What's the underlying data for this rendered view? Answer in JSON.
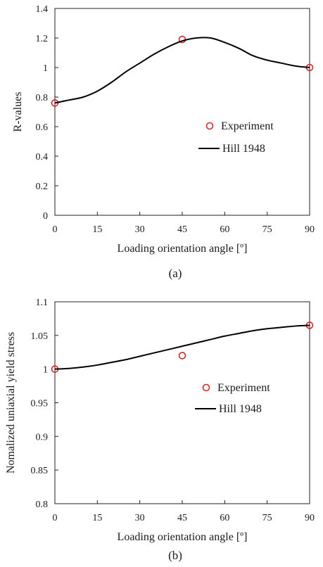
{
  "chart_data": [
    {
      "type": "line",
      "panel_label": "(a)",
      "xlabel": "Loading orientation angle [º]",
      "ylabel": "R-values",
      "xlim": [
        0,
        90
      ],
      "ylim": [
        0,
        1.4
      ],
      "xticks": [
        "0",
        "15",
        "30",
        "45",
        "60",
        "75",
        "90"
      ],
      "yticks": [
        "0",
        "0.2",
        "0.4",
        "0.6",
        "0.8",
        "1",
        "1.2",
        "1.4"
      ],
      "grid": false,
      "legend_position": "center-right",
      "series": [
        {
          "name": "Experiment",
          "kind": "scatter",
          "marker": "open-circle",
          "color": "#d62728",
          "x": [
            0,
            45,
            90
          ],
          "y": [
            0.76,
            1.19,
            1.0
          ]
        },
        {
          "name": "Hill 1948",
          "kind": "line",
          "color": "#000000",
          "x": [
            0,
            5,
            10,
            15,
            20,
            25,
            30,
            35,
            40,
            45,
            50,
            55,
            60,
            65,
            70,
            75,
            80,
            85,
            90
          ],
          "y": [
            0.76,
            0.78,
            0.8,
            0.84,
            0.9,
            0.97,
            1.03,
            1.09,
            1.14,
            1.18,
            1.2,
            1.2,
            1.17,
            1.13,
            1.08,
            1.05,
            1.03,
            1.01,
            1.0
          ]
        }
      ]
    },
    {
      "type": "line",
      "panel_label": "(b)",
      "xlabel": "Loading orientation angle [º]",
      "ylabel": "Nomalized uniaxial yield stress",
      "xlim": [
        0,
        90
      ],
      "ylim": [
        0.8,
        1.1
      ],
      "xticks": [
        "0",
        "15",
        "30",
        "45",
        "60",
        "75",
        "90"
      ],
      "yticks": [
        "0.8",
        "0.85",
        "0.9",
        "0.95",
        "1",
        "1.05",
        "1.1"
      ],
      "grid": false,
      "legend_position": "center-right",
      "series": [
        {
          "name": "Experiment",
          "kind": "scatter",
          "marker": "open-circle",
          "color": "#d62728",
          "x": [
            0,
            45,
            90
          ],
          "y": [
            1.0,
            1.02,
            1.065
          ]
        },
        {
          "name": "Hill 1948",
          "kind": "line",
          "color": "#000000",
          "x": [
            0,
            5,
            10,
            15,
            20,
            25,
            30,
            35,
            40,
            45,
            50,
            55,
            60,
            65,
            70,
            75,
            80,
            85,
            90
          ],
          "y": [
            1.0,
            1.001,
            1.003,
            1.006,
            1.01,
            1.014,
            1.019,
            1.024,
            1.029,
            1.034,
            1.039,
            1.044,
            1.049,
            1.053,
            1.057,
            1.06,
            1.062,
            1.064,
            1.065
          ]
        }
      ]
    }
  ]
}
